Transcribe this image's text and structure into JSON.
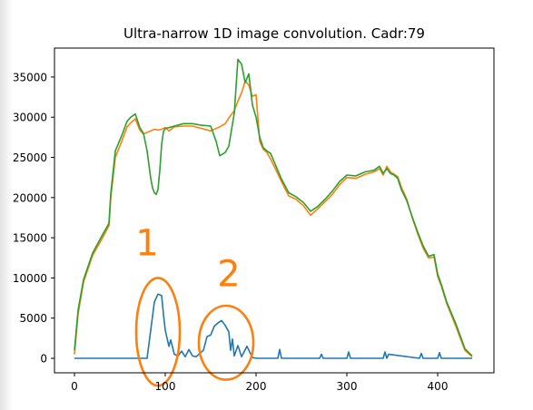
{
  "chart_data": {
    "type": "line",
    "title": "Ultra-narrow 1D image convolution. Cadr:79",
    "xlabel": "",
    "ylabel": "",
    "xlim": [
      -22,
      462
    ],
    "ylim": [
      -1800,
      38600
    ],
    "x_ticks": [
      "0",
      "100",
      "200",
      "300",
      "400"
    ],
    "x_tick_values": [
      0,
      100,
      200,
      300,
      400
    ],
    "y_ticks": [
      "0",
      "5000",
      "10000",
      "15000",
      "20000",
      "25000",
      "30000",
      "35000"
    ],
    "y_tick_values": [
      0,
      5000,
      10000,
      15000,
      20000,
      25000,
      30000,
      35000
    ],
    "grid": false,
    "series": [
      {
        "color": "#1f77b4",
        "x": [
          0,
          80,
          84,
          88,
          92,
          96,
          98,
          100,
          104,
          106,
          110,
          114,
          118,
          122,
          126,
          130,
          134,
          138,
          142,
          146,
          150,
          154,
          158,
          162,
          166,
          170,
          172,
          174,
          176,
          180,
          184,
          190,
          196,
          200,
          224,
          226,
          228,
          270,
          272,
          274,
          300,
          302,
          304,
          340,
          342,
          344,
          346,
          380,
          382,
          384,
          400,
          402,
          404,
          430,
          438
        ],
        "y": [
          0,
          0,
          3500,
          7000,
          8000,
          7800,
          5500,
          3500,
          1500,
          2300,
          500,
          300,
          900,
          200,
          1100,
          300,
          200,
          600,
          1000,
          2700,
          2900,
          4000,
          4400,
          4700,
          4100,
          3300,
          1000,
          2400,
          300,
          1600,
          200,
          1500,
          100,
          0,
          0,
          1100,
          0,
          0,
          500,
          0,
          0,
          800,
          0,
          0,
          800,
          0,
          500,
          0,
          600,
          0,
          0,
          700,
          0,
          0,
          0
        ]
      },
      {
        "color": "#ff7f0e",
        "x": [
          0,
          4,
          10,
          20,
          30,
          38,
          40,
          45,
          52,
          58,
          62,
          67,
          72,
          76,
          80,
          84,
          88,
          92,
          96,
          100,
          104,
          110,
          120,
          130,
          140,
          150,
          160,
          166,
          170,
          176,
          180,
          184,
          188,
          192,
          196,
          200,
          204,
          208,
          212,
          216,
          222,
          228,
          236,
          244,
          252,
          260,
          268,
          276,
          284,
          292,
          300,
          310,
          320,
          330,
          336,
          340,
          344,
          348,
          352,
          356,
          360,
          366,
          372,
          378,
          384,
          390,
          396,
          400,
          404,
          410,
          420,
          430,
          438
        ],
        "y": [
          500,
          5500,
          9500,
          12800,
          14800,
          16500,
          20000,
          25000,
          27000,
          28800,
          29300,
          29800,
          28400,
          27900,
          28100,
          28300,
          28500,
          28400,
          28500,
          28700,
          28300,
          28800,
          28900,
          28900,
          28600,
          28300,
          28800,
          29200,
          29900,
          30800,
          32000,
          33000,
          34500,
          34000,
          32600,
          32800,
          27000,
          26000,
          25600,
          24800,
          23400,
          22000,
          20200,
          19800,
          19000,
          17800,
          18600,
          19500,
          20400,
          21600,
          22500,
          22400,
          22900,
          23200,
          23600,
          22800,
          23900,
          23200,
          22900,
          22600,
          21300,
          19800,
          17500,
          15500,
          13700,
          12500,
          12600,
          10200,
          9000,
          6800,
          4000,
          1000,
          200
        ]
      },
      {
        "color": "#2ca02c",
        "x": [
          0,
          4,
          10,
          20,
          30,
          38,
          40,
          45,
          52,
          58,
          62,
          67,
          72,
          76,
          80,
          84,
          86,
          88,
          90,
          92,
          94,
          96,
          98,
          100,
          104,
          110,
          120,
          130,
          140,
          150,
          156,
          160,
          166,
          170,
          176,
          180,
          184,
          188,
          192,
          196,
          200,
          204,
          208,
          212,
          216,
          222,
          228,
          236,
          244,
          252,
          260,
          268,
          276,
          284,
          292,
          300,
          310,
          320,
          330,
          336,
          340,
          344,
          348,
          352,
          356,
          360,
          366,
          372,
          378,
          384,
          390,
          396,
          400,
          404,
          410,
          420,
          430,
          438
        ],
        "y": [
          1000,
          6000,
          9800,
          13100,
          15200,
          16800,
          20500,
          25800,
          27700,
          29500,
          30000,
          30400,
          28700,
          28000,
          25800,
          22400,
          21200,
          20600,
          20400,
          21000,
          23400,
          26600,
          28200,
          28600,
          28700,
          28900,
          29200,
          29200,
          29000,
          28900,
          27000,
          25200,
          25600,
          26400,
          30500,
          37200,
          36600,
          34300,
          35400,
          31500,
          30000,
          27500,
          26200,
          25800,
          25500,
          23900,
          22300,
          20600,
          20100,
          19400,
          18300,
          18900,
          19800,
          20800,
          22000,
          22800,
          22700,
          23200,
          23400,
          23900,
          23000,
          23600,
          23000,
          22800,
          22400,
          21000,
          19600,
          17600,
          15700,
          14000,
          12700,
          12900,
          10500,
          9200,
          7000,
          4300,
          1200,
          300
        ]
      }
    ],
    "annotations": [
      {
        "label": "1",
        "color": "#ff7f0e",
        "x": 80,
        "y": 12800,
        "ellipse": {
          "cx": 92,
          "cy": 3300,
          "rx": 24,
          "ry": 6700
        }
      },
      {
        "label": "2",
        "color": "#ff7f0e",
        "x": 170,
        "y": 9000,
        "ellipse": {
          "cx": 167,
          "cy": 1950,
          "rx": 30,
          "ry": 4600
        }
      }
    ]
  }
}
